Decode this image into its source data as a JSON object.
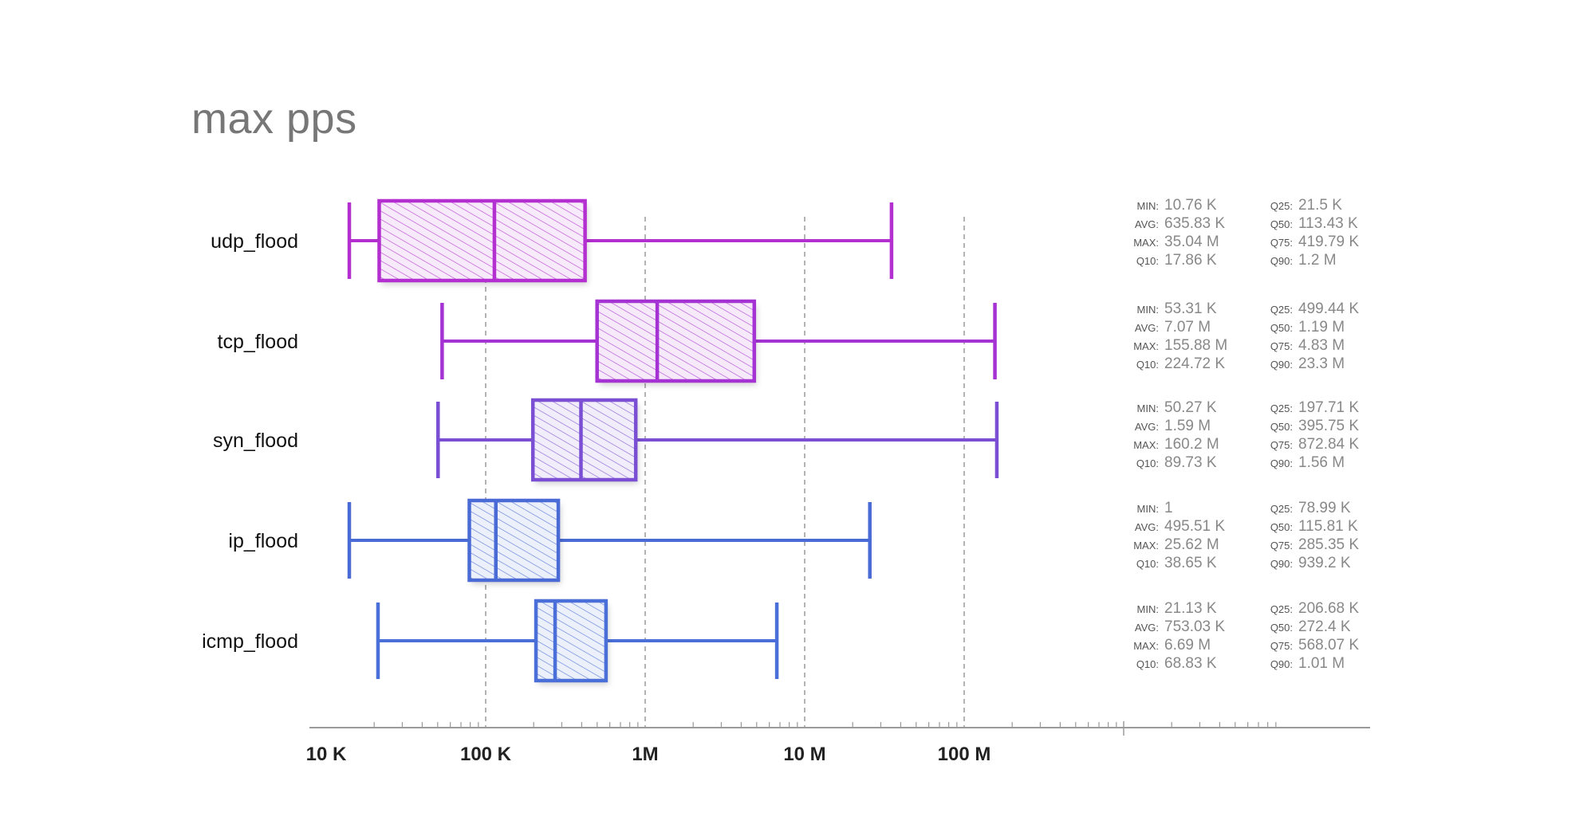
{
  "chart_data": {
    "type": "box",
    "title": "max pps",
    "xscale": "log",
    "xlim": [
      10000,
      1000000000
    ],
    "xticks": [
      {
        "value": 10000,
        "label": "10 K"
      },
      {
        "value": 100000,
        "label": "100 K"
      },
      {
        "value": 1000000,
        "label": "1M"
      },
      {
        "value": 10000000,
        "label": "10 M"
      },
      {
        "value": 100000000,
        "label": "100 M"
      }
    ],
    "gridlines": [
      100000,
      1000000,
      10000000,
      100000000
    ],
    "series": [
      {
        "name": "udp_flood",
        "color": "#b32fd0",
        "min": 10760,
        "q25": 21500,
        "q50": 113430,
        "q75": 419790,
        "max": 35040000,
        "stats": [
          [
            "MIN:",
            "10.76 K"
          ],
          [
            "Q25:",
            "21.5 K"
          ],
          [
            "AVG:",
            "635.83 K"
          ],
          [
            "Q50:",
            "113.43 K"
          ],
          [
            "MAX:",
            "35.04 M"
          ],
          [
            "Q75:",
            "419.79 K"
          ],
          [
            "Q10:",
            "17.86 K"
          ],
          [
            "Q90:",
            "1.2 M"
          ]
        ]
      },
      {
        "name": "tcp_flood",
        "color": "#a533d3",
        "min": 53310,
        "q25": 499440,
        "q50": 1190000,
        "q75": 4830000,
        "max": 155880000,
        "stats": [
          [
            "MIN:",
            "53.31 K"
          ],
          [
            "Q25:",
            "499.44 K"
          ],
          [
            "AVG:",
            "7.07 M"
          ],
          [
            "Q50:",
            "1.19 M"
          ],
          [
            "MAX:",
            "155.88 M"
          ],
          [
            "Q75:",
            "4.83 M"
          ],
          [
            "Q10:",
            "224.72 K"
          ],
          [
            "Q90:",
            "23.3 M"
          ]
        ]
      },
      {
        "name": "syn_flood",
        "color": "#7a4fd4",
        "min": 50270,
        "q25": 197710,
        "q50": 395750,
        "q75": 872840,
        "max": 160200000,
        "stats": [
          [
            "MIN:",
            "50.27 K"
          ],
          [
            "Q25:",
            "197.71 K"
          ],
          [
            "AVG:",
            "1.59 M"
          ],
          [
            "Q50:",
            "395.75 K"
          ],
          [
            "MAX:",
            "160.2 M"
          ],
          [
            "Q75:",
            "872.84 K"
          ],
          [
            "Q10:",
            "89.73 K"
          ],
          [
            "Q90:",
            "1.56 M"
          ]
        ]
      },
      {
        "name": "ip_flood",
        "color": "#4a6bd6",
        "min": 1,
        "q25": 78990,
        "q50": 115810,
        "q75": 285350,
        "max": 25620000,
        "stats": [
          [
            "MIN:",
            "1"
          ],
          [
            "Q25:",
            "78.99 K"
          ],
          [
            "AVG:",
            "495.51 K"
          ],
          [
            "Q50:",
            "115.81 K"
          ],
          [
            "MAX:",
            "25.62 M"
          ],
          [
            "Q75:",
            "285.35 K"
          ],
          [
            "Q10:",
            "38.65 K"
          ],
          [
            "Q90:",
            "939.2 K"
          ]
        ]
      },
      {
        "name": "icmp_flood",
        "color": "#4a6fd8",
        "min": 21130,
        "q25": 206680,
        "q50": 272400,
        "q75": 568070,
        "max": 6690000,
        "stats": [
          [
            "MIN:",
            "21.13 K"
          ],
          [
            "Q25:",
            "206.68 K"
          ],
          [
            "AVG:",
            "753.03 K"
          ],
          [
            "Q50:",
            "272.4 K"
          ],
          [
            "MAX:",
            "6.69 M"
          ],
          [
            "Q75:",
            "568.07 K"
          ],
          [
            "Q10:",
            "68.83 K"
          ],
          [
            "Q90:",
            "1.01 M"
          ]
        ]
      }
    ]
  }
}
